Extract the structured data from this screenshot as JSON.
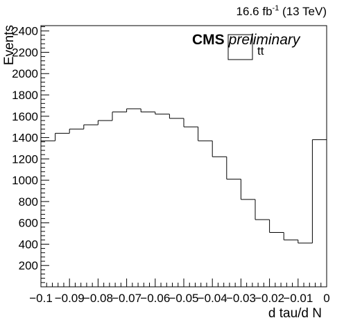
{
  "header": {
    "lumi_value": "16.6 fb",
    "lumi_exponent": "-1",
    "lumi_energy": " (13 TeV)",
    "cms_label": "CMS",
    "cms_status": "preliminary"
  },
  "chart_data": {
    "type": "bar",
    "style": "step-histogram",
    "xlabel": "d tau/d N",
    "ylabel": "Events",
    "xlim": [
      -0.1,
      0.0
    ],
    "ylim": [
      0,
      2450
    ],
    "x_ticks": [
      -0.1,
      -0.09,
      -0.08,
      -0.07,
      -0.06,
      -0.05,
      -0.04,
      -0.03,
      -0.02,
      -0.01,
      0
    ],
    "x_tick_labels": [
      "−0.1",
      "−0.09",
      "−0.08",
      "−0.07",
      "−0.06",
      "−0.05",
      "−0.04",
      "−0.03",
      "−0.02",
      "−0.01",
      "0"
    ],
    "y_ticks": [
      200,
      400,
      600,
      800,
      1000,
      1200,
      1400,
      1600,
      1800,
      2000,
      2200,
      2400
    ],
    "y_tick_labels": [
      "200",
      "400",
      "600",
      "800",
      "1000",
      "1200",
      "1400",
      "1600",
      "1800",
      "2000",
      "2200",
      "2400"
    ],
    "bin_edges": [
      -0.1,
      -0.095,
      -0.09,
      -0.085,
      -0.08,
      -0.075,
      -0.07,
      -0.065,
      -0.06,
      -0.055,
      -0.05,
      -0.045,
      -0.04,
      -0.035,
      -0.03,
      -0.025,
      -0.02,
      -0.015,
      -0.01,
      -0.005,
      0.0
    ],
    "series": [
      {
        "name": "tt",
        "values": [
          1370,
          1440,
          1480,
          1520,
          1560,
          1640,
          1670,
          1640,
          1620,
          1580,
          1500,
          1370,
          1220,
          1010,
          820,
          630,
          510,
          440,
          410,
          1380
        ]
      }
    ],
    "legend": {
      "position": "top-right",
      "entries": [
        "tt"
      ]
    },
    "grid": false,
    "colors": {
      "line": "#000000",
      "background": "#ffffff"
    }
  }
}
